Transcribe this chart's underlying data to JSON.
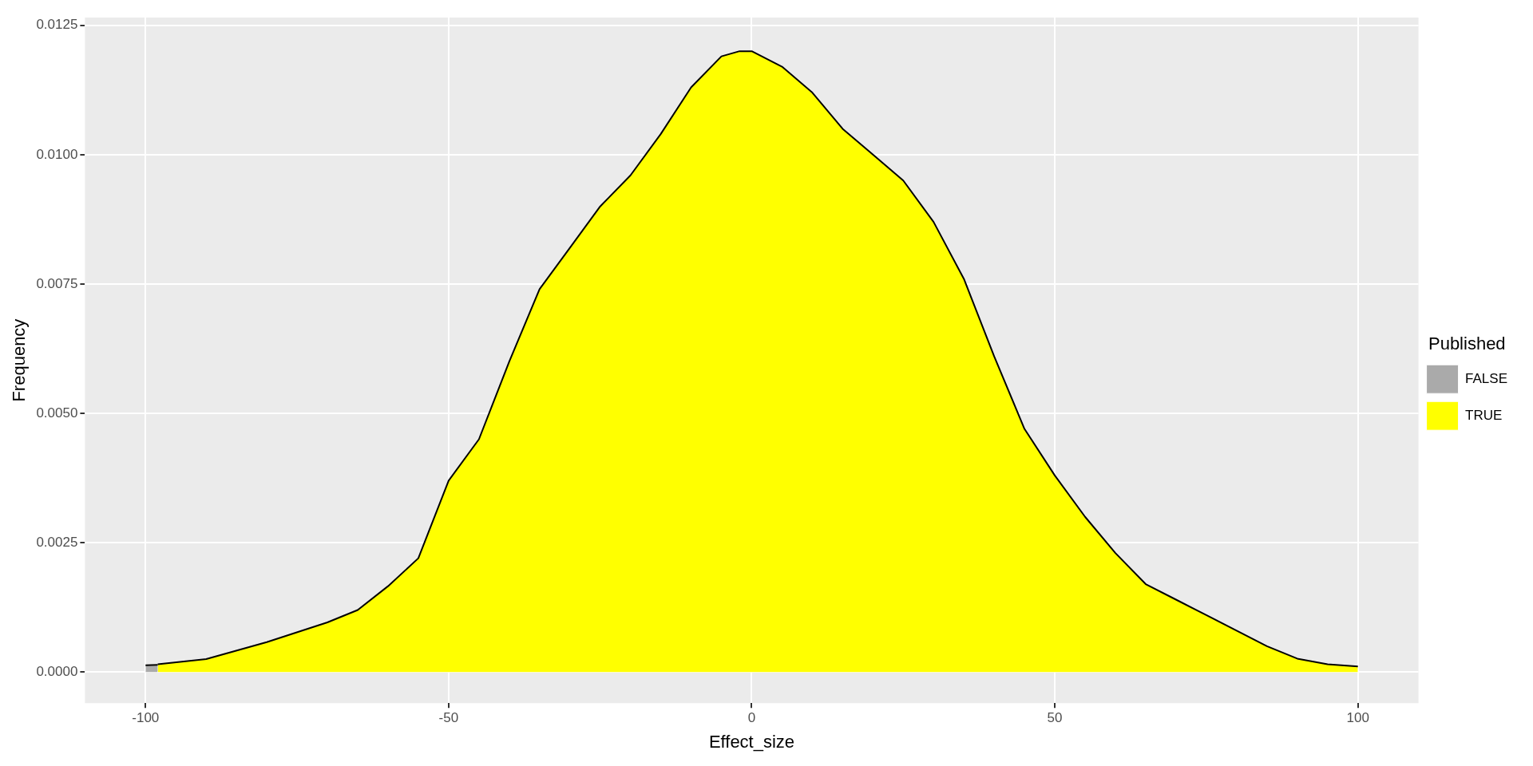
{
  "chart_data": {
    "type": "area",
    "xlabel": "Effect_size",
    "ylabel": "Frequency",
    "legend_title": "Published",
    "legend": "right",
    "grid": true,
    "xlim": [
      -110,
      110
    ],
    "xticks": [
      -100,
      -50,
      0,
      50,
      100
    ],
    "ylim": [
      -0.0006,
      0.01265
    ],
    "yticks": [
      {
        "value": 0,
        "label": "0.0000"
      },
      {
        "value": 0.0025,
        "label": "0.0025"
      },
      {
        "value": 0.005,
        "label": "0.0050"
      },
      {
        "value": 0.0075,
        "label": "0.0075"
      },
      {
        "value": 0.01,
        "label": "0.0100"
      },
      {
        "value": 0.0125,
        "label": "0.0125"
      }
    ],
    "series": [
      {
        "name": "FALSE",
        "color": "#aaaaaa",
        "x": [
          -100,
          -98
        ],
        "values": [
          0.00013,
          0.00014
        ]
      },
      {
        "name": "TRUE",
        "color": "#ffff00",
        "x": [
          -98,
          -90,
          -80,
          -70,
          -65,
          -60,
          -55,
          -50,
          -45,
          -40,
          -35,
          -30,
          -25,
          -20,
          -15,
          -10,
          -5,
          -2,
          0,
          5,
          10,
          15,
          20,
          25,
          30,
          35,
          40,
          45,
          50,
          55,
          60,
          65,
          70,
          75,
          80,
          85,
          90,
          95,
          100
        ],
        "values": [
          0.00015,
          0.00025,
          0.00058,
          0.00096,
          0.0012,
          0.00166,
          0.0022,
          0.0037,
          0.0045,
          0.006,
          0.0074,
          0.0082,
          0.009,
          0.0096,
          0.0104,
          0.0113,
          0.0119,
          0.012,
          0.012,
          0.0117,
          0.0112,
          0.0105,
          0.01,
          0.0095,
          0.0087,
          0.0076,
          0.0061,
          0.0047,
          0.0038,
          0.003,
          0.0023,
          0.0017,
          0.0014,
          0.0011,
          0.0008,
          0.0005,
          0.00026,
          0.00015,
          0.00011
        ]
      }
    ]
  }
}
